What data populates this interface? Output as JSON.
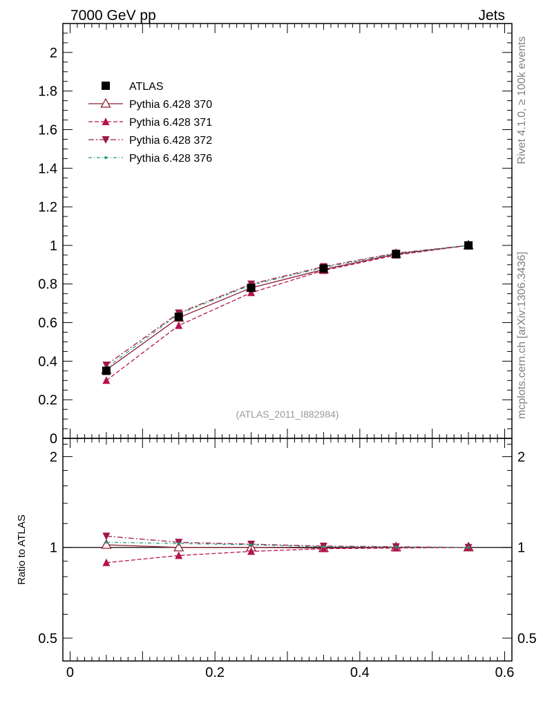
{
  "header": {
    "left": "7000 GeV pp",
    "right": "Jets"
  },
  "side": {
    "rivet": "Rivet 4.1.0, ≥ 100k events",
    "mcplots": "mcplots.cern.ch [arXiv:1306.3436]"
  },
  "analysis_id": "(ATLAS_2011_I882984)",
  "chart_data": [
    {
      "type": "line",
      "panel": "main",
      "x": [
        0.05,
        0.15,
        0.25,
        0.35,
        0.45,
        0.55
      ],
      "xlim": [
        -0.01,
        0.61
      ],
      "ylim": [
        0,
        2.15
      ],
      "yticks": [
        0,
        0.2,
        0.4,
        0.6,
        0.8,
        1,
        1.2,
        1.4,
        1.6,
        1.8,
        2
      ],
      "ytick_labels": [
        "0",
        "0.2",
        "0.4",
        "0.6",
        "0.8",
        "1",
        "1.2",
        "1.4",
        "1.6",
        "1.8",
        "2"
      ],
      "legend_position": "top-left",
      "series": [
        {
          "name": "ATLAS",
          "color": "#000000",
          "marker": "square",
          "dash": "none",
          "values": [
            0.35,
            0.63,
            0.78,
            0.88,
            0.955,
            1.0
          ]
        },
        {
          "name": "Pythia 6.428 370",
          "color": "#8b1a2b",
          "marker": "triangle-open",
          "dash": "solid",
          "values": [
            0.355,
            0.625,
            0.78,
            0.875,
            0.955,
            1.0
          ]
        },
        {
          "name": "Pythia 6.428 371",
          "color": "#b5124f",
          "marker": "triangle-up",
          "dash": "dashed",
          "values": [
            0.3,
            0.585,
            0.755,
            0.87,
            0.95,
            1.0
          ]
        },
        {
          "name": "Pythia 6.428 372",
          "color": "#a0174a",
          "marker": "triangle-down",
          "dash": "dashdot",
          "values": [
            0.38,
            0.65,
            0.8,
            0.89,
            0.96,
            1.0
          ]
        },
        {
          "name": "Pythia 6.428 376",
          "color": "#1f9a7a",
          "marker": "dot",
          "dash": "dashdot2",
          "values": [
            0.365,
            0.645,
            0.795,
            0.885,
            0.958,
            1.0
          ]
        }
      ]
    },
    {
      "type": "line",
      "panel": "ratio",
      "ylabel": "Ratio to ATLAS",
      "x": [
        0.05,
        0.15,
        0.25,
        0.35,
        0.45,
        0.55
      ],
      "xlim": [
        -0.01,
        0.61
      ],
      "ylim": [
        0.42,
        2.3
      ],
      "yscale": "log",
      "yticks": [
        0.5,
        1,
        2
      ],
      "ytick_labels": [
        "0.5",
        "1",
        "2"
      ],
      "xticks": [
        0,
        0.2,
        0.4,
        0.6
      ],
      "xtick_labels": [
        "0",
        "0.2",
        "0.4",
        "0.6"
      ],
      "series": [
        {
          "name": "Pythia 6.428 370",
          "values": [
            1.02,
            1.0,
            1.0,
            0.995,
            1.0,
            1.0
          ]
        },
        {
          "name": "Pythia 6.428 371",
          "values": [
            0.89,
            0.94,
            0.97,
            0.99,
            0.995,
            1.0
          ]
        },
        {
          "name": "Pythia 6.428 372",
          "values": [
            1.09,
            1.04,
            1.025,
            1.01,
            1.005,
            1.0
          ]
        },
        {
          "name": "Pythia 6.428 376",
          "values": [
            1.04,
            1.03,
            1.02,
            1.005,
            1.002,
            1.0
          ]
        }
      ]
    }
  ]
}
